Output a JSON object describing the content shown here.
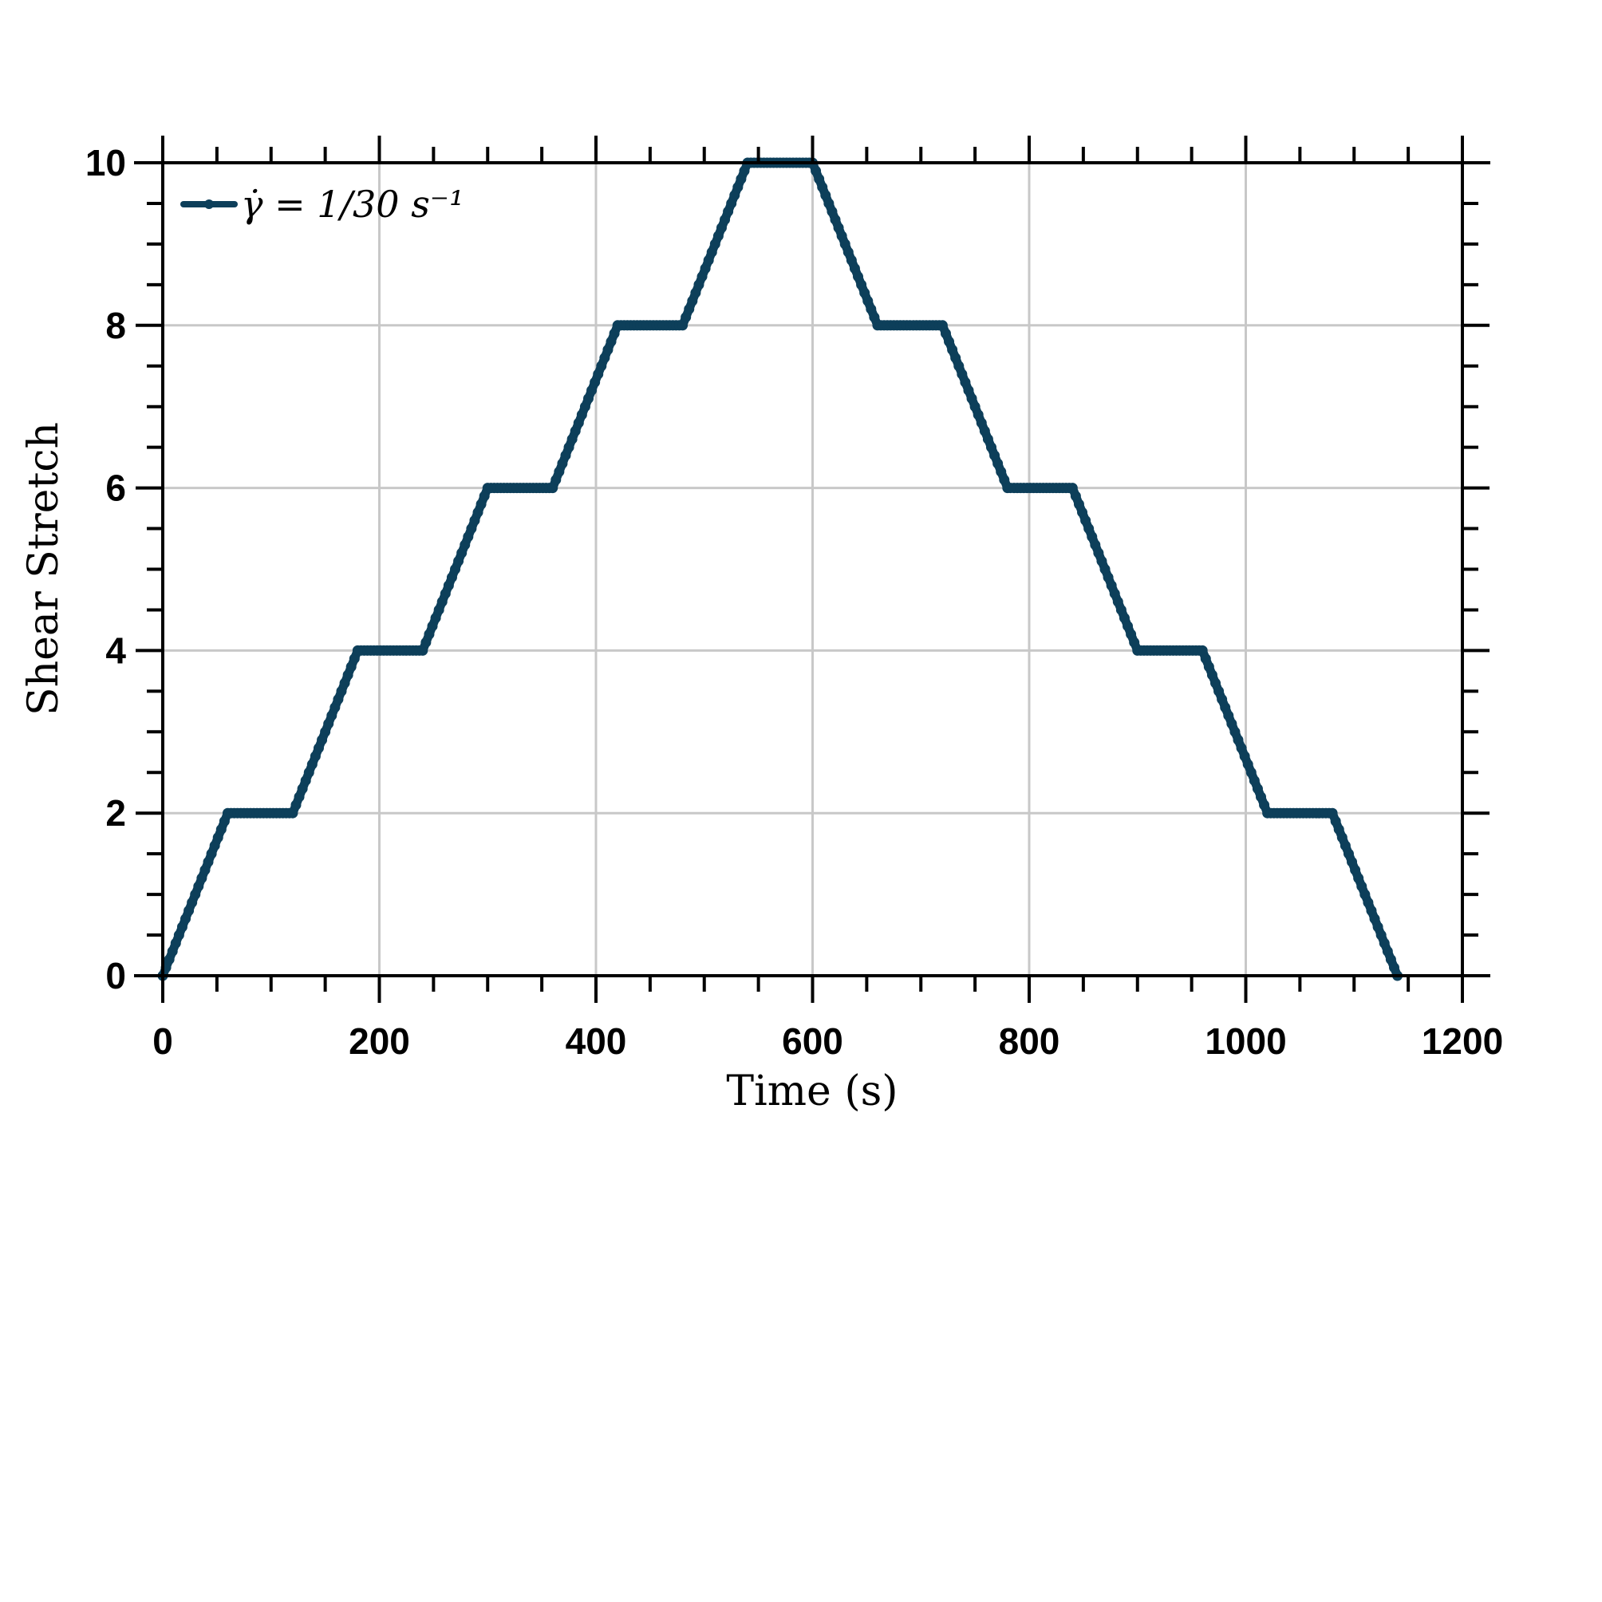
{
  "chart_data": {
    "type": "line",
    "title": "",
    "xlabel": "Time (s)",
    "ylabel": "Shear Stretch",
    "xlim": [
      0,
      1200
    ],
    "ylim": [
      0,
      10
    ],
    "xticks": [
      0,
      200,
      400,
      600,
      800,
      1000,
      1200
    ],
    "yticks": [
      0,
      2,
      4,
      6,
      8,
      10
    ],
    "xtick_labels": [
      "0",
      "200",
      "400",
      "600",
      "800",
      "1000",
      "1200"
    ],
    "ytick_labels": [
      "0",
      "2",
      "4",
      "6",
      "8",
      "10"
    ],
    "grid": true,
    "legend_position": "top-left",
    "series": [
      {
        "name": "γ̇ = 1/30 s⁻¹",
        "color": "#0d3f5a",
        "x": [
          0,
          60,
          120,
          180,
          240,
          300,
          360,
          420,
          480,
          540,
          600,
          660,
          720,
          780,
          840,
          900,
          960,
          1020,
          1080,
          1140
        ],
        "y": [
          0,
          2,
          2,
          4,
          4,
          6,
          6,
          8,
          8,
          10,
          10,
          8,
          8,
          6,
          6,
          4,
          4,
          2,
          2,
          0
        ]
      }
    ]
  }
}
